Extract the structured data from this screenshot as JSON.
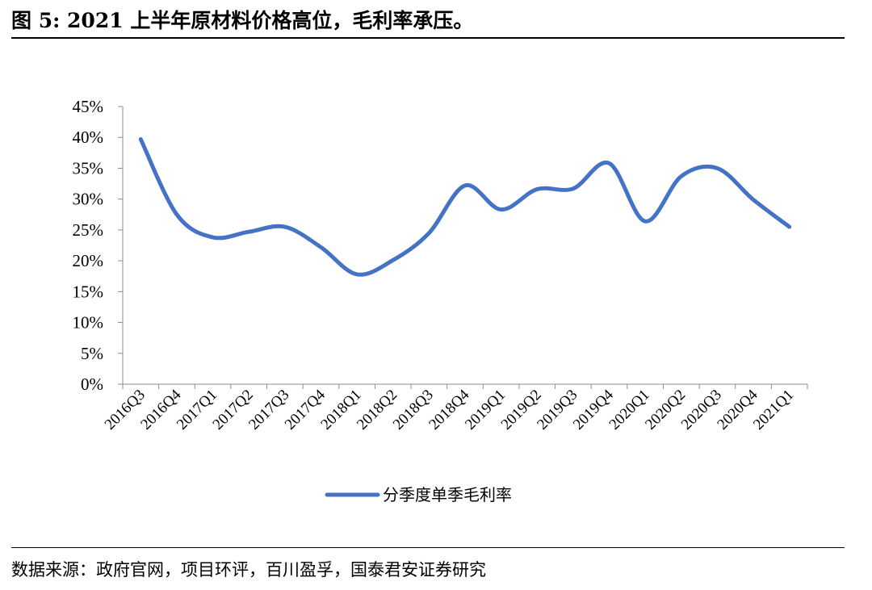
{
  "figure": {
    "title": "图 5:  2021 上半年原材料价格高位，毛利率承压。",
    "source": "数据来源：政府官网，项目环评，百川盈孚，国泰君安证券研究"
  },
  "chart_data": {
    "type": "line",
    "categories": [
      "2016Q3",
      "2016Q4",
      "2017Q1",
      "2017Q2",
      "2017Q3",
      "2017Q4",
      "2018Q1",
      "2018Q2",
      "2018Q3",
      "2018Q4",
      "2019Q1",
      "2019Q2",
      "2019Q3",
      "2019Q4",
      "2020Q1",
      "2020Q2",
      "2020Q3",
      "2020Q4",
      "2021Q1"
    ],
    "series": [
      {
        "name": "分季度单季毛利率",
        "color": "#4472C4",
        "values": [
          0.397,
          0.275,
          0.238,
          0.247,
          0.255,
          0.222,
          0.178,
          0.201,
          0.245,
          0.322,
          0.283,
          0.316,
          0.317,
          0.358,
          0.264,
          0.337,
          0.35,
          0.299,
          0.255
        ]
      }
    ],
    "yticks": [
      "0%",
      "5%",
      "10%",
      "15%",
      "20%",
      "25%",
      "30%",
      "35%",
      "40%",
      "45%"
    ],
    "ylim": [
      0,
      0.45
    ],
    "legend_position": "bottom",
    "grid": false
  }
}
